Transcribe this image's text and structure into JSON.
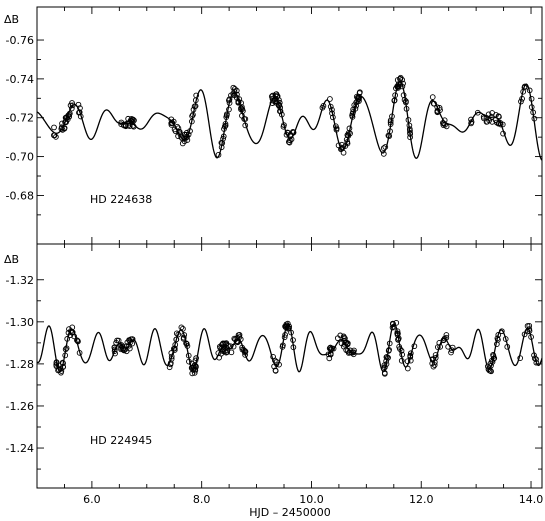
{
  "chart_data": [
    {
      "type": "scatter",
      "label": "HD 224638",
      "ylabel": "ΔB",
      "xlabel": "",
      "xlim": [
        5.0,
        14.2
      ],
      "ylim": [
        -0.655,
        -0.777
      ],
      "inverted_y": true,
      "yticks": [
        -0.76,
        -0.74,
        -0.72,
        -0.7,
        -0.68
      ],
      "ytick_labels": [
        "-0.76",
        "-0.74",
        "-0.72",
        "-0.70",
        "-0.68"
      ],
      "model_curve": {
        "mean": -0.718,
        "components": [
          {
            "amplitude": 0.01,
            "frequency": 1.35,
            "phase": 0.4
          },
          {
            "amplitude": 0.008,
            "frequency": 1.68,
            "phase": 1.9
          },
          {
            "amplitude": 0.004,
            "frequency": 2.2,
            "phase": 0.7
          }
        ],
        "envelope": {
          "start": 0.35,
          "ramp_end": 9.3,
          "slope": 0.16
        }
      },
      "observation_nights": [
        {
          "x_start": 5.3,
          "x_end": 5.8,
          "n": 30
        },
        {
          "x_start": 6.5,
          "x_end": 6.8,
          "n": 20
        },
        {
          "x_start": 7.4,
          "x_end": 7.9,
          "n": 35
        },
        {
          "x_start": 8.3,
          "x_end": 8.8,
          "n": 40
        },
        {
          "x_start": 9.2,
          "x_end": 9.7,
          "n": 40
        },
        {
          "x_start": 10.2,
          "x_end": 10.9,
          "n": 45
        },
        {
          "x_start": 11.3,
          "x_end": 11.8,
          "n": 40
        },
        {
          "x_start": 12.2,
          "x_end": 12.5,
          "n": 15
        },
        {
          "x_start": 12.9,
          "x_end": 13.5,
          "n": 25
        },
        {
          "x_start": 13.8,
          "x_end": 14.1,
          "n": 10
        }
      ]
    },
    {
      "type": "scatter",
      "label": "HD 224945",
      "ylabel": "ΔB",
      "xlabel": "HJD – 2450000",
      "xlim": [
        5.0,
        14.2
      ],
      "ylim": [
        -1.221,
        -1.337
      ],
      "inverted_y": true,
      "yticks": [
        -1.32,
        -1.3,
        -1.28,
        -1.26,
        -1.24
      ],
      "ytick_labels": [
        "-1.32",
        "-1.30",
        "-1.28",
        "-1.26",
        "-1.24"
      ],
      "xticks": [
        6.0,
        8.0,
        10.0,
        12.0,
        14.0
      ],
      "xtick_labels": [
        "6.0",
        "8.0",
        "10.0",
        "12.0",
        "14.0"
      ],
      "model_curve": {
        "mean": -1.2875,
        "components": [
          {
            "amplitude": 0.006,
            "frequency": 2.05,
            "phase": 0.9
          },
          {
            "amplitude": 0.004,
            "frequency": 2.55,
            "phase": 2.3
          },
          {
            "amplitude": 0.002,
            "frequency": 3.2,
            "phase": 0.1
          }
        ],
        "envelope": null
      },
      "observation_nights": [
        {
          "x_start": 5.3,
          "x_end": 5.8,
          "n": 30
        },
        {
          "x_start": 6.4,
          "x_end": 6.8,
          "n": 30
        },
        {
          "x_start": 7.4,
          "x_end": 7.9,
          "n": 40
        },
        {
          "x_start": 8.3,
          "x_end": 8.8,
          "n": 45
        },
        {
          "x_start": 9.3,
          "x_end": 9.7,
          "n": 25
        },
        {
          "x_start": 10.3,
          "x_end": 10.8,
          "n": 35
        },
        {
          "x_start": 11.3,
          "x_end": 11.9,
          "n": 40
        },
        {
          "x_start": 12.2,
          "x_end": 12.6,
          "n": 20
        },
        {
          "x_start": 13.2,
          "x_end": 13.6,
          "n": 20
        },
        {
          "x_start": 13.8,
          "x_end": 14.1,
          "n": 12
        }
      ]
    }
  ]
}
